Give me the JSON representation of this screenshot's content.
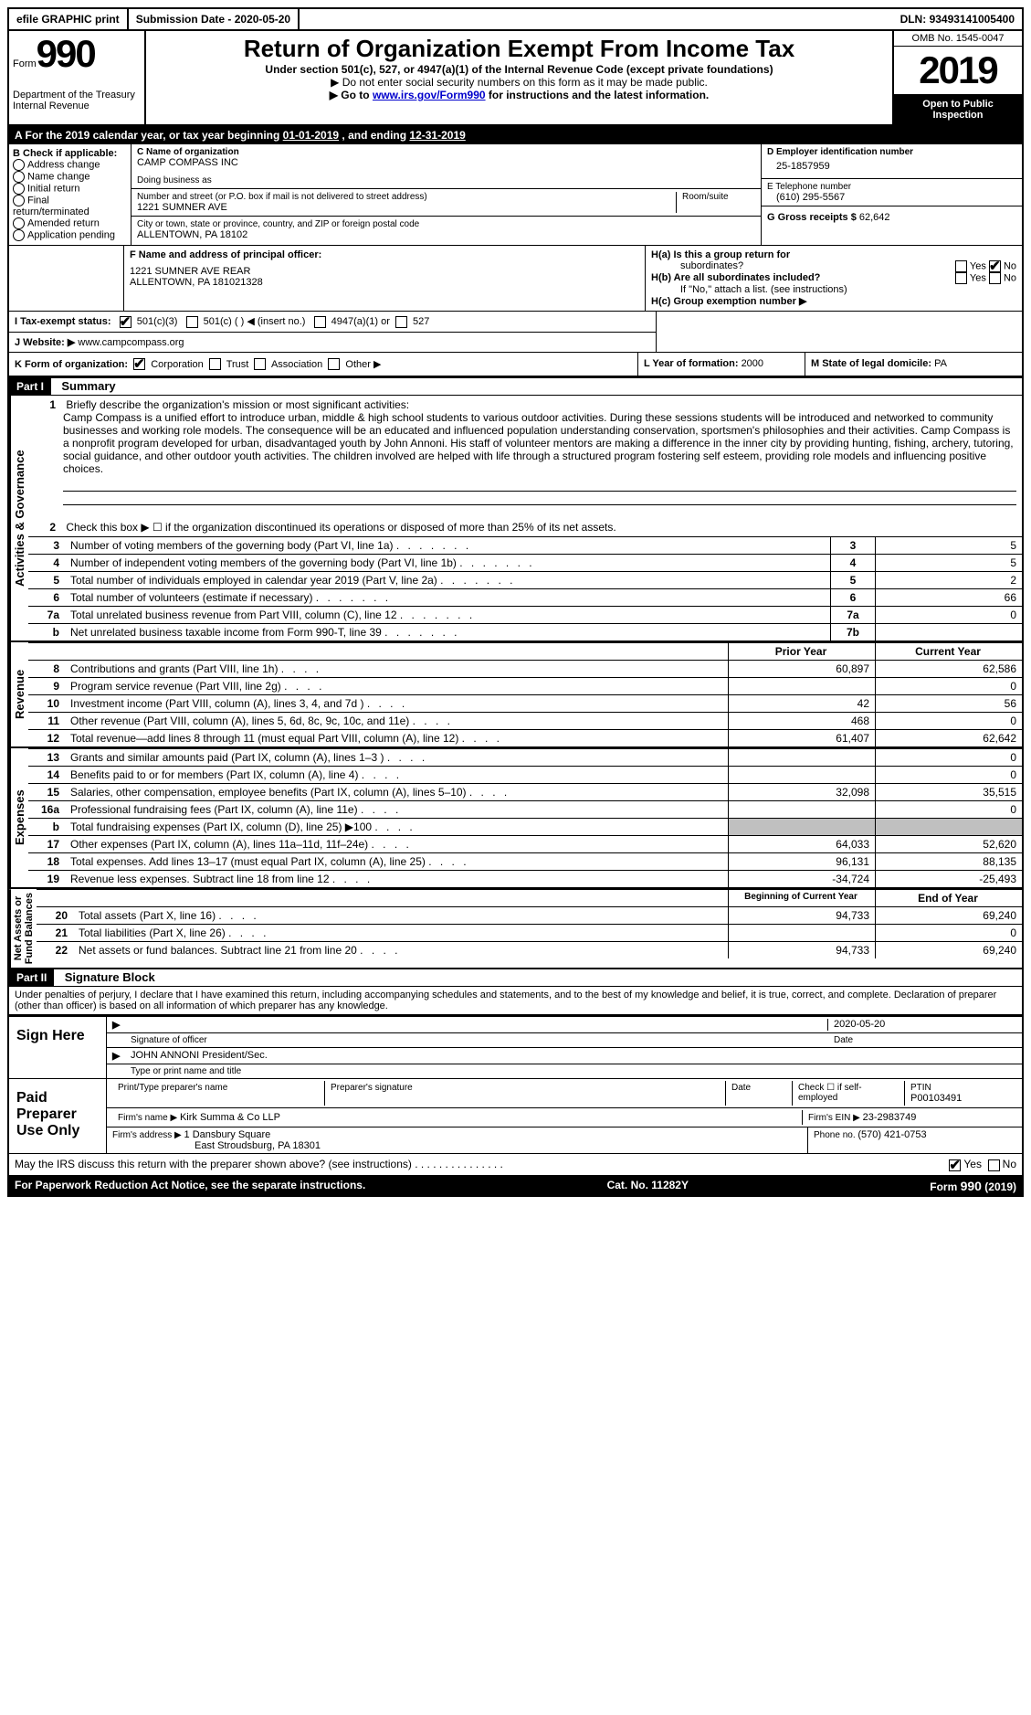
{
  "top": {
    "efile": "efile GRAPHIC print",
    "submission_label": "Submission Date - ",
    "submission_date": "2020-05-20",
    "dln_label": "DLN: ",
    "dln": "93493141005400"
  },
  "header": {
    "form_word": "Form",
    "form_num": "990",
    "dept": "Department of the Treasury\nInternal Revenue",
    "title": "Return of Organization Exempt From Income Tax",
    "subtitle": "Under section 501(c), 527, or 4947(a)(1) of the Internal Revenue Code (except private foundations)",
    "note1": "▶ Do not enter social security numbers on this form as it may be made public.",
    "note2_pre": "▶ Go to ",
    "note2_link": "www.irs.gov/Form990",
    "note2_post": " for instructions and the latest information.",
    "omb": "OMB No. 1545-0047",
    "year": "2019",
    "open": "Open to Public\nInspection"
  },
  "period": {
    "line_a_pre": "A For the 2019 calendar year, or tax year beginning ",
    "begin": "01-01-2019",
    "mid": " , and ending ",
    "end": "12-31-2019"
  },
  "b": {
    "title": "B Check if applicable:",
    "opts": [
      "Address change",
      "Name change",
      "Initial return",
      "Final return/terminated",
      "Amended return",
      "Application pending"
    ]
  },
  "c": {
    "name_label": "C Name of organization",
    "name": "CAMP COMPASS INC",
    "dba_label": "Doing business as",
    "street_label": "Number and street (or P.O. box if mail is not delivered to street address)",
    "room_label": "Room/suite",
    "street": "1221 SUMNER AVE",
    "city_label": "City or town, state or province, country, and ZIP or foreign postal code",
    "city": "ALLENTOWN, PA  18102"
  },
  "d": {
    "label": "D Employer identification number",
    "val": "25-1857959"
  },
  "e": {
    "label": "E Telephone number",
    "val": "(610) 295-5567"
  },
  "g": {
    "label": "G Gross receipts $ ",
    "val": "62,642"
  },
  "f": {
    "label": "F  Name and address of principal officer:",
    "addr1": "1221 SUMNER AVE REAR",
    "addr2": "ALLENTOWN, PA  181021328"
  },
  "h": {
    "a_label": "H(a)  Is this a group return for",
    "a_sub": "subordinates?",
    "b_label": "H(b)  Are all subordinates included?",
    "b_note": "If \"No,\" attach a list. (see instructions)",
    "c_label": "H(c)  Group exemption number ▶",
    "yes": "Yes",
    "no": "No"
  },
  "i": {
    "label": "I  Tax-exempt status:",
    "o1": "501(c)(3)",
    "o2": "501(c) (  ) ◀ (insert no.)",
    "o3": "4947(a)(1) or",
    "o4": "527"
  },
  "j": {
    "label": "J  Website: ▶",
    "val": "www.campcompass.org"
  },
  "k": {
    "label": "K Form of organization:",
    "o1": "Corporation",
    "o2": "Trust",
    "o3": "Association",
    "o4": "Other ▶"
  },
  "l": {
    "label": "L Year of formation: ",
    "val": "2000"
  },
  "m": {
    "label": "M State of legal domicile: ",
    "val": "PA"
  },
  "part1": {
    "label": "Part I",
    "title": "Summary",
    "side_ag": "Activities & Governance",
    "side_rev": "Revenue",
    "side_exp": "Expenses",
    "side_net": "Net Assets or\nFund Balances",
    "l1_label": "Briefly describe the organization's mission or most significant activities:",
    "l1_text": "Camp Compass is a unified effort to introduce urban, middle & high school students to various outdoor activities. During these sessions students will be introduced and networked to community businesses and working role models. The consequence will be an educated and influenced population understanding conservation, sportsmen's philosophies and their activities. Camp Compass is a nonprofit program developed for urban, disadvantaged youth by John Annoni. His staff of volunteer mentors are making a difference in the inner city by providing hunting, fishing, archery, tutoring, social guidance, and other outdoor youth activities. The children involved are helped with life through a structured program fostering self esteem, providing role models and influencing positive choices.",
    "l2": "Check this box ▶ ☐ if the organization discontinued its operations or disposed of more than 25% of its net assets.",
    "lines_ag": [
      {
        "n": "3",
        "t": "Number of voting members of the governing body (Part VI, line 1a)",
        "box": "3",
        "v": "5"
      },
      {
        "n": "4",
        "t": "Number of independent voting members of the governing body (Part VI, line 1b)",
        "box": "4",
        "v": "5"
      },
      {
        "n": "5",
        "t": "Total number of individuals employed in calendar year 2019 (Part V, line 2a)",
        "box": "5",
        "v": "2"
      },
      {
        "n": "6",
        "t": "Total number of volunteers (estimate if necessary)",
        "box": "6",
        "v": "66"
      },
      {
        "n": "7a",
        "t": "Total unrelated business revenue from Part VIII, column (C), line 12",
        "box": "7a",
        "v": "0"
      },
      {
        "n": "b",
        "t": "Net unrelated business taxable income from Form 990-T, line 39",
        "box": "7b",
        "v": ""
      }
    ],
    "prior_year": "Prior Year",
    "current_year": "Current Year",
    "lines_rev": [
      {
        "n": "8",
        "t": "Contributions and grants (Part VIII, line 1h)",
        "py": "60,897",
        "cy": "62,586"
      },
      {
        "n": "9",
        "t": "Program service revenue (Part VIII, line 2g)",
        "py": "",
        "cy": "0"
      },
      {
        "n": "10",
        "t": "Investment income (Part VIII, column (A), lines 3, 4, and 7d )",
        "py": "42",
        "cy": "56"
      },
      {
        "n": "11",
        "t": "Other revenue (Part VIII, column (A), lines 5, 6d, 8c, 9c, 10c, and 11e)",
        "py": "468",
        "cy": "0"
      },
      {
        "n": "12",
        "t": "Total revenue—add lines 8 through 11 (must equal Part VIII, column (A), line 12)",
        "py": "61,407",
        "cy": "62,642"
      }
    ],
    "lines_exp": [
      {
        "n": "13",
        "t": "Grants and similar amounts paid (Part IX, column (A), lines 1–3 )",
        "py": "",
        "cy": "0"
      },
      {
        "n": "14",
        "t": "Benefits paid to or for members (Part IX, column (A), line 4)",
        "py": "",
        "cy": "0"
      },
      {
        "n": "15",
        "t": "Salaries, other compensation, employee benefits (Part IX, column (A), lines 5–10)",
        "py": "32,098",
        "cy": "35,515"
      },
      {
        "n": "16a",
        "t": "Professional fundraising fees (Part IX, column (A), line 11e)",
        "py": "",
        "cy": "0"
      },
      {
        "n": "b",
        "t": "Total fundraising expenses (Part IX, column (D), line 25) ▶100",
        "py": "gray",
        "cy": "gray"
      },
      {
        "n": "17",
        "t": "Other expenses (Part IX, column (A), lines 11a–11d, 11f–24e)",
        "py": "64,033",
        "cy": "52,620"
      },
      {
        "n": "18",
        "t": "Total expenses. Add lines 13–17 (must equal Part IX, column (A), line 25)",
        "py": "96,131",
        "cy": "88,135"
      },
      {
        "n": "19",
        "t": "Revenue less expenses. Subtract line 18 from line 12",
        "py": "-34,724",
        "cy": "-25,493"
      }
    ],
    "beg_year": "Beginning of Current Year",
    "end_year": "End of Year",
    "lines_net": [
      {
        "n": "20",
        "t": "Total assets (Part X, line 16)",
        "py": "94,733",
        "cy": "69,240"
      },
      {
        "n": "21",
        "t": "Total liabilities (Part X, line 26)",
        "py": "",
        "cy": "0"
      },
      {
        "n": "22",
        "t": "Net assets or fund balances. Subtract line 21 from line 20",
        "py": "94,733",
        "cy": "69,240"
      }
    ]
  },
  "part2": {
    "label": "Part II",
    "title": "Signature Block",
    "perjury": "Under penalties of perjury, I declare that I have examined this return, including accompanying schedules and statements, and to the best of my knowledge and belief, it is true, correct, and complete. Declaration of preparer (other than officer) is based on all information of which preparer has any knowledge.",
    "sign_here": "Sign Here",
    "sig_officer": "Signature of officer",
    "date_label": "Date",
    "sig_date": "2020-05-20",
    "officer_name": "JOHN ANNONI  President/Sec.",
    "type_name": "Type or print name and title",
    "paid": "Paid Preparer Use Only",
    "prep_name_label": "Print/Type preparer's name",
    "prep_sig_label": "Preparer's signature",
    "check_self": "Check ☐ if self-employed",
    "ptin_label": "PTIN",
    "ptin": "P00103491",
    "firm_name_label": "Firm's name    ▶ ",
    "firm_name": "Kirk Summa & Co LLP",
    "firm_ein_label": "Firm's EIN ▶ ",
    "firm_ein": "23-2983749",
    "firm_addr_label": "Firm's address ▶ ",
    "firm_addr1": "1 Dansbury Square",
    "firm_addr2": "East Stroudsburg, PA  18301",
    "phone_label": "Phone no. ",
    "phone": "(570) 421-0753",
    "discuss": "May the IRS discuss this return with the preparer shown above? (see instructions)",
    "yes": "Yes",
    "no": "No"
  },
  "footer": {
    "left": "For Paperwork Reduction Act Notice, see the separate instructions.",
    "mid": "Cat. No. 11282Y",
    "right": "Form 990 (2019)"
  }
}
